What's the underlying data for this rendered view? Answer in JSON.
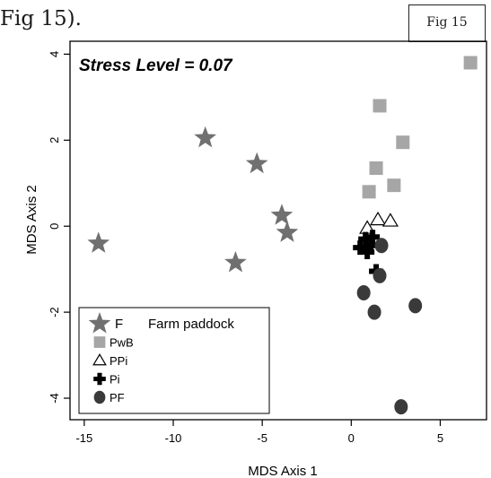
{
  "page": {
    "text_fragment": "Fig 15).",
    "fig_label": "Fig 15"
  },
  "chart_data": {
    "type": "scatter",
    "title": "Stress Level = 0.07",
    "xlabel": "MDS Axis 1",
    "ylabel": "MDS Axis 2",
    "xlim": [
      -15.8,
      7.6
    ],
    "ylim": [
      -4.5,
      4.3
    ],
    "xticks": [
      -15,
      -10,
      -5,
      0,
      5
    ],
    "yticks": [
      -4,
      -2,
      0,
      2,
      4
    ],
    "grid": false,
    "legend_placement": "bottom-left",
    "legend_note": "Farm paddock",
    "series": [
      {
        "name": "F",
        "marker": "star",
        "color": "#707070",
        "points": [
          [
            -14.2,
            -0.4
          ],
          [
            -8.2,
            2.05
          ],
          [
            -5.3,
            1.45
          ],
          [
            -6.5,
            -0.85
          ],
          [
            -3.9,
            0.25
          ],
          [
            -3.6,
            -0.15
          ]
        ]
      },
      {
        "name": "PwB",
        "marker": "square",
        "color": "#a6a6a6",
        "points": [
          [
            6.7,
            3.8
          ],
          [
            1.6,
            2.8
          ],
          [
            2.9,
            1.95
          ],
          [
            1.4,
            1.35
          ],
          [
            1.0,
            0.8
          ],
          [
            2.4,
            0.95
          ]
        ]
      },
      {
        "name": "PPi",
        "marker": "triangle",
        "color": "#000000",
        "points": [
          [
            0.9,
            -0.05
          ],
          [
            1.5,
            0.15
          ],
          [
            2.2,
            0.12
          ]
        ]
      },
      {
        "name": "Pi",
        "marker": "cross",
        "color": "#000000",
        "points": [
          [
            0.5,
            -0.5
          ],
          [
            0.8,
            -0.3
          ],
          [
            1.2,
            -0.25
          ],
          [
            0.9,
            -0.6
          ],
          [
            1.4,
            -1.05
          ],
          [
            1.1,
            -0.45
          ]
        ]
      },
      {
        "name": "PF",
        "marker": "circle",
        "color": "#3a3a3a",
        "points": [
          [
            1.7,
            -0.45
          ],
          [
            1.6,
            -1.15
          ],
          [
            0.7,
            -1.55
          ],
          [
            1.3,
            -2.0
          ],
          [
            3.6,
            -1.85
          ],
          [
            2.8,
            -4.2
          ]
        ]
      }
    ]
  }
}
